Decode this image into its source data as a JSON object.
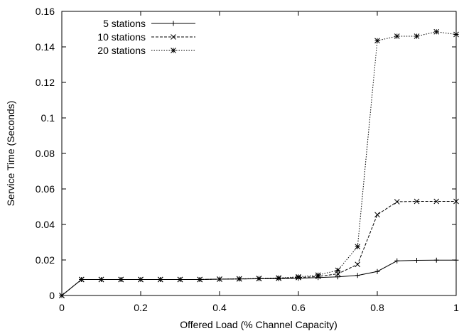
{
  "chart_data": {
    "type": "line",
    "title": "",
    "xlabel": "Offered Load (% Channel Capacity)",
    "ylabel": "Service Time (Seconds)",
    "xlim": [
      0,
      1
    ],
    "ylim": [
      0,
      0.16
    ],
    "x_ticks": [
      "0",
      "0.2",
      "0.4",
      "0.6",
      "0.8",
      "1"
    ],
    "y_ticks": [
      "0",
      "0.02",
      "0.04",
      "0.06",
      "0.08",
      "0.1",
      "0.12",
      "0.14",
      "0.16"
    ],
    "grid": false,
    "legend_position": "top-left",
    "line_color": "#000000",
    "series": [
      {
        "name": "5 stations",
        "line_style": "solid",
        "marker": "plus",
        "x": [
          0,
          0.05,
          0.1,
          0.15,
          0.2,
          0.25,
          0.3,
          0.35,
          0.4,
          0.45,
          0.5,
          0.55,
          0.6,
          0.65,
          0.7,
          0.75,
          0.8,
          0.85,
          0.9,
          0.95,
          1.0
        ],
        "y": [
          0,
          0.009,
          0.009,
          0.009,
          0.009,
          0.009,
          0.009,
          0.009,
          0.0092,
          0.0093,
          0.0094,
          0.0095,
          0.0097,
          0.0101,
          0.0105,
          0.0113,
          0.0135,
          0.0195,
          0.0198,
          0.0199,
          0.0199
        ]
      },
      {
        "name": "10 stations",
        "line_style": "dashed",
        "marker": "x",
        "x": [
          0,
          0.05,
          0.1,
          0.15,
          0.2,
          0.25,
          0.3,
          0.35,
          0.4,
          0.45,
          0.5,
          0.55,
          0.6,
          0.65,
          0.7,
          0.75,
          0.8,
          0.85,
          0.9,
          0.95,
          1.0
        ],
        "y": [
          0,
          0.009,
          0.009,
          0.009,
          0.009,
          0.009,
          0.009,
          0.009,
          0.0092,
          0.0093,
          0.0095,
          0.0097,
          0.0101,
          0.0107,
          0.0122,
          0.0175,
          0.0455,
          0.0528,
          0.053,
          0.053,
          0.053
        ]
      },
      {
        "name": "20 stations",
        "line_style": "dotted",
        "marker": "star",
        "x": [
          0,
          0.05,
          0.1,
          0.15,
          0.2,
          0.25,
          0.3,
          0.35,
          0.4,
          0.45,
          0.5,
          0.55,
          0.6,
          0.65,
          0.7,
          0.75,
          0.8,
          0.85,
          0.9,
          0.95,
          1.0
        ],
        "y": [
          0,
          0.009,
          0.009,
          0.009,
          0.009,
          0.009,
          0.009,
          0.009,
          0.0092,
          0.0094,
          0.0096,
          0.0099,
          0.0105,
          0.0115,
          0.0142,
          0.0275,
          0.1435,
          0.146,
          0.146,
          0.1485,
          0.147
        ]
      }
    ]
  }
}
